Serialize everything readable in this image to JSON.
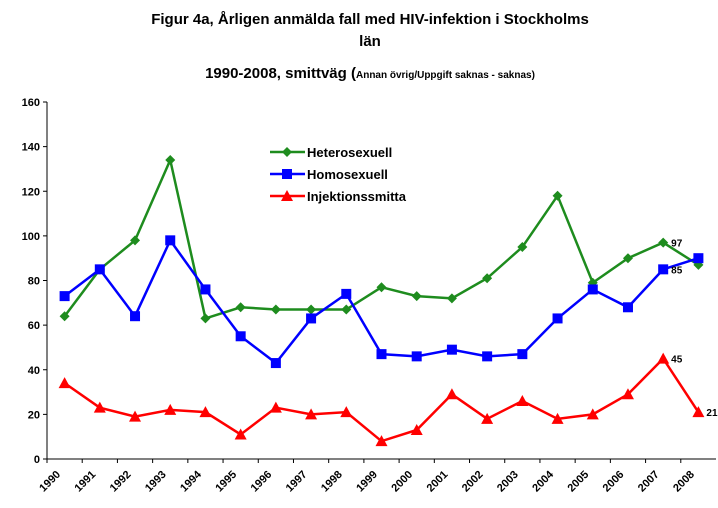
{
  "chart_data": {
    "type": "line",
    "title": "Figur 4a, Årligen anmälda fall med HIV-infektion i Stockholms län",
    "subtitle": "1990-2008, smittväg (",
    "subtitle_note": "Annan övrig/Uppgift saknas - saknas)",
    "categories": [
      "1990",
      "1991",
      "1992",
      "1993",
      "1994",
      "1995",
      "1996",
      "1997",
      "1998",
      "1999",
      "2000",
      "2001",
      "2002",
      "2003",
      "2004",
      "2005",
      "2006",
      "2007",
      "2008"
    ],
    "series": [
      {
        "name": "Heterosexuell",
        "color": "#1e8c1e",
        "marker": "diamond",
        "values": [
          64,
          85,
          98,
          134,
          63,
          68,
          67,
          67,
          67,
          77,
          73,
          72,
          81,
          95,
          118,
          79,
          90,
          97,
          87
        ],
        "value_labels": [
          null,
          null,
          null,
          null,
          null,
          null,
          null,
          null,
          null,
          null,
          null,
          null,
          null,
          null,
          null,
          null,
          null,
          "97",
          null
        ]
      },
      {
        "name": "Homosexuell",
        "color": "#0000ff",
        "marker": "square",
        "values": [
          73,
          85,
          64,
          98,
          76,
          55,
          43,
          63,
          74,
          47,
          46,
          49,
          46,
          47,
          63,
          76,
          68,
          85,
          90
        ],
        "value_labels": [
          null,
          null,
          null,
          null,
          null,
          null,
          null,
          null,
          null,
          null,
          null,
          null,
          null,
          null,
          null,
          null,
          null,
          "85",
          null
        ]
      },
      {
        "name": "Injektionssmitta",
        "color": "#ff0000",
        "marker": "triangle",
        "values": [
          34,
          23,
          19,
          22,
          21,
          11,
          23,
          20,
          21,
          8,
          13,
          29,
          18,
          26,
          18,
          20,
          29,
          45,
          21
        ],
        "value_labels": [
          null,
          null,
          null,
          null,
          null,
          null,
          null,
          null,
          null,
          null,
          null,
          null,
          null,
          null,
          null,
          null,
          null,
          "45",
          "21"
        ]
      }
    ],
    "ylim": [
      0,
      160
    ],
    "yticks": [
      0,
      20,
      40,
      60,
      80,
      100,
      120,
      140,
      160
    ],
    "grid": false
  }
}
